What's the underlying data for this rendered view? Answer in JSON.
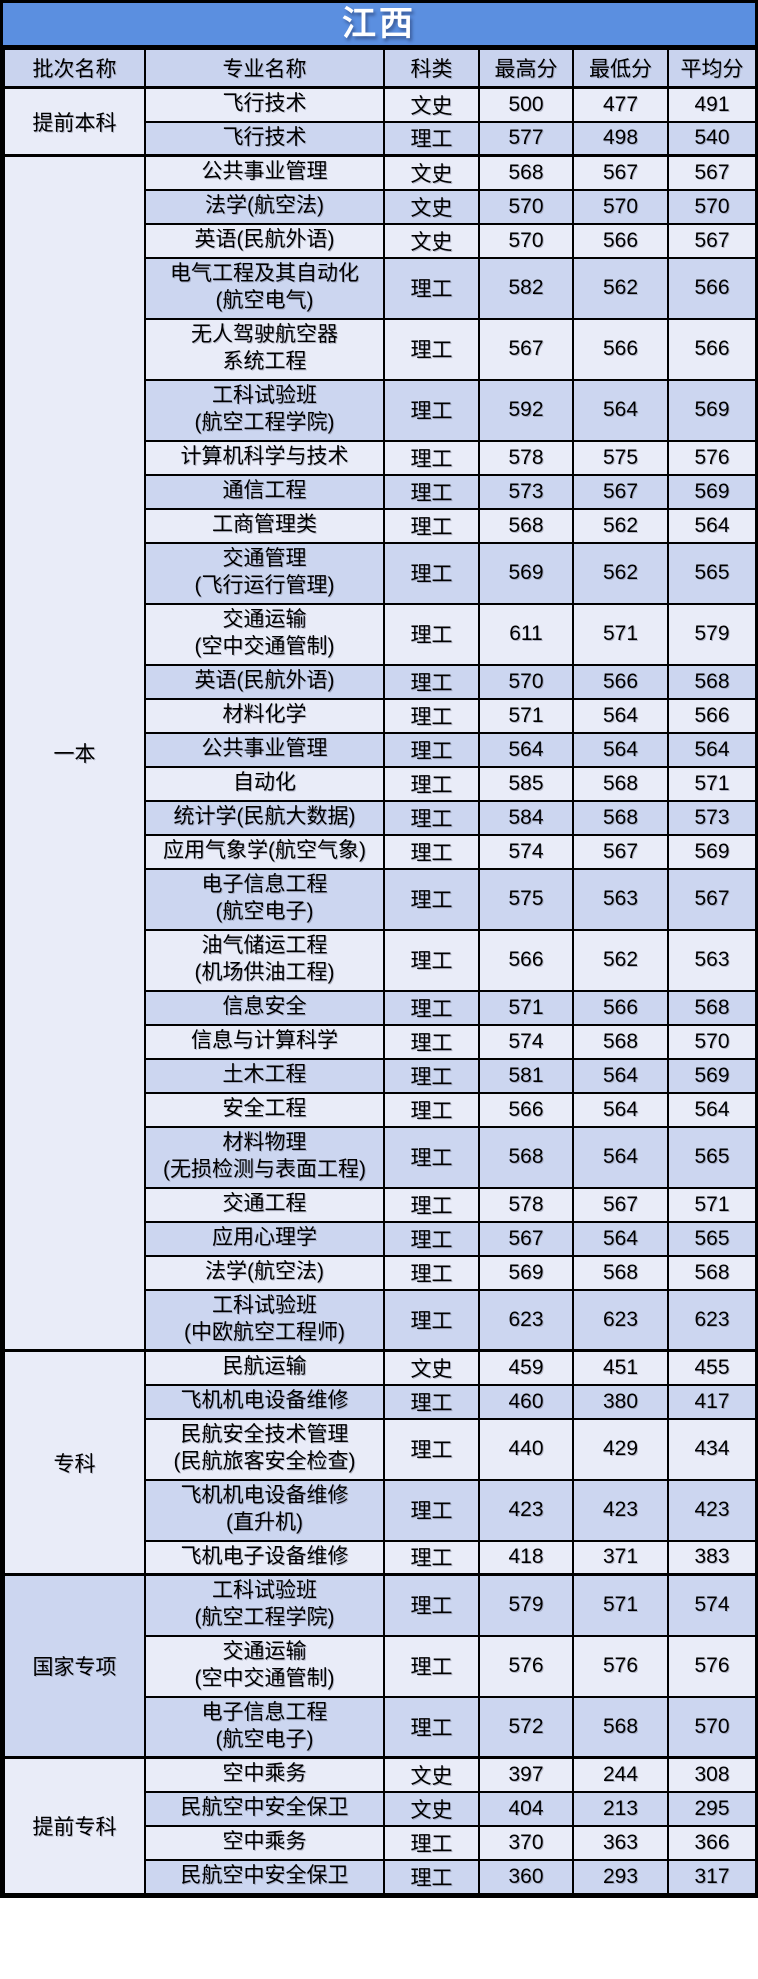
{
  "chart_data": {
    "type": "table",
    "title": "江西",
    "columns": [
      "批次名称",
      "专业名称",
      "科类",
      "最高分",
      "最低分",
      "平均分"
    ],
    "sections": [
      {
        "batch": "提前本科",
        "rows": [
          {
            "major": "飞行技术",
            "category": "文史",
            "max": "500",
            "min": "477",
            "avg": "491"
          },
          {
            "major": "飞行技术",
            "category": "理工",
            "max": "577",
            "min": "498",
            "avg": "540"
          }
        ]
      },
      {
        "batch": "一本",
        "rows": [
          {
            "major": "公共事业管理",
            "category": "文史",
            "max": "568",
            "min": "567",
            "avg": "567"
          },
          {
            "major": "法学(航空法)",
            "category": "文史",
            "max": "570",
            "min": "570",
            "avg": "570"
          },
          {
            "major": "英语(民航外语)",
            "category": "文史",
            "max": "570",
            "min": "566",
            "avg": "567"
          },
          {
            "major": "电气工程及其自动化\n(航空电气)",
            "category": "理工",
            "max": "582",
            "min": "562",
            "avg": "566"
          },
          {
            "major": "无人驾驶航空器\n系统工程",
            "category": "理工",
            "max": "567",
            "min": "566",
            "avg": "566"
          },
          {
            "major": "工科试验班\n(航空工程学院)",
            "category": "理工",
            "max": "592",
            "min": "564",
            "avg": "569"
          },
          {
            "major": "计算机科学与技术",
            "category": "理工",
            "max": "578",
            "min": "575",
            "avg": "576"
          },
          {
            "major": "通信工程",
            "category": "理工",
            "max": "573",
            "min": "567",
            "avg": "569"
          },
          {
            "major": "工商管理类",
            "category": "理工",
            "max": "568",
            "min": "562",
            "avg": "564"
          },
          {
            "major": "交通管理\n(飞行运行管理)",
            "category": "理工",
            "max": "569",
            "min": "562",
            "avg": "565"
          },
          {
            "major": "交通运输\n(空中交通管制)",
            "category": "理工",
            "max": "611",
            "min": "571",
            "avg": "579"
          },
          {
            "major": "英语(民航外语)",
            "category": "理工",
            "max": "570",
            "min": "566",
            "avg": "568"
          },
          {
            "major": "材料化学",
            "category": "理工",
            "max": "571",
            "min": "564",
            "avg": "566"
          },
          {
            "major": "公共事业管理",
            "category": "理工",
            "max": "564",
            "min": "564",
            "avg": "564"
          },
          {
            "major": "自动化",
            "category": "理工",
            "max": "585",
            "min": "568",
            "avg": "571"
          },
          {
            "major": "统计学(民航大数据)",
            "category": "理工",
            "max": "584",
            "min": "568",
            "avg": "573"
          },
          {
            "major": "应用气象学(航空气象)",
            "category": "理工",
            "max": "574",
            "min": "567",
            "avg": "569"
          },
          {
            "major": "电子信息工程\n(航空电子)",
            "category": "理工",
            "max": "575",
            "min": "563",
            "avg": "567"
          },
          {
            "major": "油气储运工程\n(机场供油工程)",
            "category": "理工",
            "max": "566",
            "min": "562",
            "avg": "563"
          },
          {
            "major": "信息安全",
            "category": "理工",
            "max": "571",
            "min": "566",
            "avg": "568"
          },
          {
            "major": "信息与计算科学",
            "category": "理工",
            "max": "574",
            "min": "568",
            "avg": "570"
          },
          {
            "major": "土木工程",
            "category": "理工",
            "max": "581",
            "min": "564",
            "avg": "569"
          },
          {
            "major": "安全工程",
            "category": "理工",
            "max": "566",
            "min": "564",
            "avg": "564"
          },
          {
            "major": "材料物理\n(无损检测与表面工程)",
            "category": "理工",
            "max": "568",
            "min": "564",
            "avg": "565"
          },
          {
            "major": "交通工程",
            "category": "理工",
            "max": "578",
            "min": "567",
            "avg": "571"
          },
          {
            "major": "应用心理学",
            "category": "理工",
            "max": "567",
            "min": "564",
            "avg": "565"
          },
          {
            "major": "法学(航空法)",
            "category": "理工",
            "max": "569",
            "min": "568",
            "avg": "568"
          },
          {
            "major": "工科试验班\n(中欧航空工程师)",
            "category": "理工",
            "max": "623",
            "min": "623",
            "avg": "623"
          }
        ]
      },
      {
        "batch": "专科",
        "rows": [
          {
            "major": "民航运输",
            "category": "文史",
            "max": "459",
            "min": "451",
            "avg": "455"
          },
          {
            "major": "飞机机电设备维修",
            "category": "理工",
            "max": "460",
            "min": "380",
            "avg": "417"
          },
          {
            "major": "民航安全技术管理\n(民航旅客安全检查)",
            "category": "理工",
            "max": "440",
            "min": "429",
            "avg": "434"
          },
          {
            "major": "飞机机电设备维修\n(直升机)",
            "category": "理工",
            "max": "423",
            "min": "423",
            "avg": "423"
          },
          {
            "major": "飞机电子设备维修",
            "category": "理工",
            "max": "418",
            "min": "371",
            "avg": "383"
          }
        ]
      },
      {
        "batch": "国家专项",
        "rows": [
          {
            "major": "工科试验班\n(航空工程学院)",
            "category": "理工",
            "max": "579",
            "min": "571",
            "avg": "574"
          },
          {
            "major": "交通运输\n(空中交通管制)",
            "category": "理工",
            "max": "576",
            "min": "576",
            "avg": "576"
          },
          {
            "major": "电子信息工程\n(航空电子)",
            "category": "理工",
            "max": "572",
            "min": "568",
            "avg": "570"
          }
        ]
      },
      {
        "batch": "提前专科",
        "rows": [
          {
            "major": "空中乘务",
            "category": "文史",
            "max": "397",
            "min": "244",
            "avg": "308"
          },
          {
            "major": "民航空中安全保卫",
            "category": "文史",
            "max": "404",
            "min": "213",
            "avg": "295"
          },
          {
            "major": "空中乘务",
            "category": "理工",
            "max": "370",
            "min": "363",
            "avg": "366"
          },
          {
            "major": "民航空中安全保卫",
            "category": "理工",
            "max": "360",
            "min": "293",
            "avg": "317"
          }
        ]
      }
    ],
    "layout_hints": {
      "colors": {
        "title_background": "#5B8FE0",
        "title_text": "#FFFFFF",
        "header_row_background": "#C9D3EE",
        "row_stripe_light": "#E9ECF8",
        "row_stripe_periwinkle": "#CCD6F0",
        "border": "#000000"
      },
      "stripe_pattern": "rows alternate light/periwinkle globally starting with light; batch cell uses color of its first row",
      "thick_borders": "outer frame, below title, below header row, between batch sections"
    }
  }
}
